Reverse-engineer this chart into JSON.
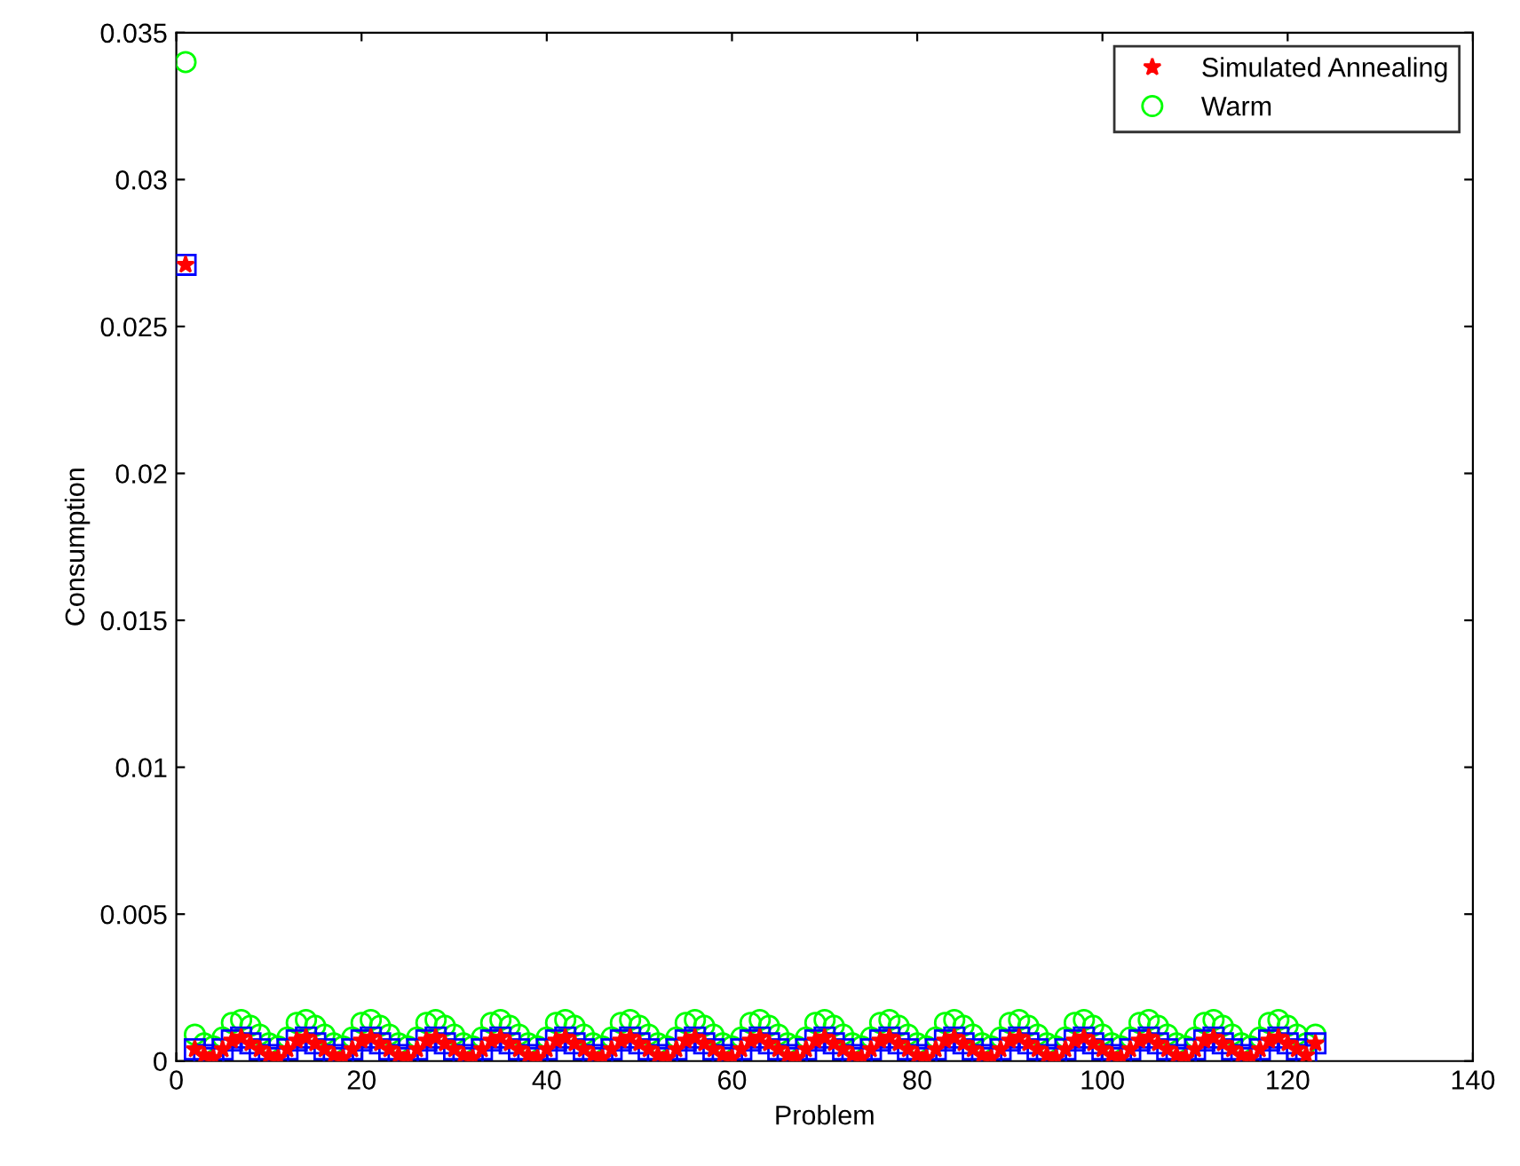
{
  "chart_data": {
    "type": "scatter",
    "xlabel": "Problem",
    "ylabel": "Consumption",
    "x": [
      1,
      2,
      3,
      4,
      5,
      6,
      7,
      8,
      9,
      10,
      11,
      12,
      13,
      14,
      15,
      16,
      17,
      18,
      19,
      20,
      21,
      22,
      23,
      24,
      25,
      26,
      27,
      28,
      29,
      30,
      31,
      32,
      33,
      34,
      35,
      36,
      37,
      38,
      39,
      40,
      41,
      42,
      43,
      44,
      45,
      46,
      47,
      48,
      49,
      50,
      51,
      52,
      53,
      54,
      55,
      56,
      57,
      58,
      59,
      60,
      61,
      62,
      63,
      64,
      65,
      66,
      67,
      68,
      69,
      70,
      71,
      72,
      73,
      74,
      75,
      76,
      77,
      78,
      79,
      80,
      81,
      82,
      83,
      84,
      85,
      86,
      87,
      88,
      89,
      90,
      91,
      92,
      93,
      94,
      95,
      96,
      97,
      98,
      99,
      100,
      101,
      102,
      103,
      104,
      105,
      106,
      107,
      108,
      109,
      110,
      111,
      112,
      113,
      114,
      115,
      116,
      117,
      118,
      119,
      120,
      121,
      122,
      123
    ],
    "series": [
      {
        "name": "Simulated Annealing",
        "color": "#ff0000",
        "marker": "star",
        "values": [
          0.0271,
          0.0004,
          0.0002,
          0.0001,
          0.0004,
          0.0007,
          0.0008,
          0.0006,
          0.0004,
          0.0002,
          0.0001,
          0.0004,
          0.0007,
          0.0008,
          0.0006,
          0.0004,
          0.0002,
          0.0001,
          0.0004,
          0.0007,
          0.0008,
          0.0006,
          0.0004,
          0.0002,
          0.0001,
          0.0004,
          0.0007,
          0.0008,
          0.0006,
          0.0004,
          0.0002,
          0.0001,
          0.0004,
          0.0007,
          0.0008,
          0.0006,
          0.0004,
          0.0002,
          0.0001,
          0.0004,
          0.0007,
          0.0008,
          0.0006,
          0.0004,
          0.0002,
          0.0001,
          0.0004,
          0.0007,
          0.0008,
          0.0006,
          0.0004,
          0.0002,
          0.0001,
          0.0004,
          0.0007,
          0.0008,
          0.0006,
          0.0004,
          0.0002,
          0.0001,
          0.0004,
          0.0007,
          0.0008,
          0.0006,
          0.0004,
          0.0002,
          0.0001,
          0.0004,
          0.0007,
          0.0008,
          0.0006,
          0.0004,
          0.0002,
          0.0001,
          0.0004,
          0.0007,
          0.0008,
          0.0006,
          0.0004,
          0.0002,
          0.0001,
          0.0004,
          0.0007,
          0.0008,
          0.0006,
          0.0004,
          0.0002,
          0.0001,
          0.0004,
          0.0007,
          0.0008,
          0.0006,
          0.0004,
          0.0002,
          0.0001,
          0.0004,
          0.0007,
          0.0008,
          0.0006,
          0.0004,
          0.0002,
          0.0001,
          0.0004,
          0.0007,
          0.0008,
          0.0006,
          0.0004,
          0.0002,
          0.0001,
          0.0004,
          0.0007,
          0.0008,
          0.0006,
          0.0004,
          0.0002,
          0.0001,
          0.0004,
          0.0007,
          0.0008,
          0.0006,
          0.0004,
          0.0002,
          0.0006
        ]
      },
      {
        "color": "#0000ff",
        "marker": "square",
        "values": [
          0.0271,
          0.0004,
          0.0002,
          0.0001,
          0.0004,
          0.0007,
          0.0008,
          0.0006,
          0.0004,
          0.0002,
          0.0001,
          0.0004,
          0.0007,
          0.0008,
          0.0006,
          0.0004,
          0.0002,
          0.0001,
          0.0004,
          0.0007,
          0.0008,
          0.0006,
          0.0004,
          0.0002,
          0.0001,
          0.0004,
          0.0007,
          0.0008,
          0.0006,
          0.0004,
          0.0002,
          0.0001,
          0.0004,
          0.0007,
          0.0008,
          0.0006,
          0.0004,
          0.0002,
          0.0001,
          0.0004,
          0.0007,
          0.0008,
          0.0006,
          0.0004,
          0.0002,
          0.0001,
          0.0004,
          0.0007,
          0.0008,
          0.0006,
          0.0004,
          0.0002,
          0.0001,
          0.0004,
          0.0007,
          0.0008,
          0.0006,
          0.0004,
          0.0002,
          0.0001,
          0.0004,
          0.0007,
          0.0008,
          0.0006,
          0.0004,
          0.0002,
          0.0001,
          0.0004,
          0.0007,
          0.0008,
          0.0006,
          0.0004,
          0.0002,
          0.0001,
          0.0004,
          0.0007,
          0.0008,
          0.0006,
          0.0004,
          0.0002,
          0.0001,
          0.0004,
          0.0007,
          0.0008,
          0.0006,
          0.0004,
          0.0002,
          0.0001,
          0.0004,
          0.0007,
          0.0008,
          0.0006,
          0.0004,
          0.0002,
          0.0001,
          0.0004,
          0.0007,
          0.0008,
          0.0006,
          0.0004,
          0.0002,
          0.0001,
          0.0004,
          0.0007,
          0.0008,
          0.0006,
          0.0004,
          0.0002,
          0.0001,
          0.0004,
          0.0007,
          0.0008,
          0.0006,
          0.0004,
          0.0002,
          0.0001,
          0.0004,
          0.0007,
          0.0008,
          0.0006,
          0.0004,
          0.0002,
          0.0006
        ]
      },
      {
        "name": "Warm",
        "color": "#00ff00",
        "marker": "circle",
        "values": [
          0.034,
          0.0009,
          0.0006,
          0.0005,
          0.0008,
          0.0013,
          0.0014,
          0.0012,
          0.0009,
          0.0006,
          0.0005,
          0.0008,
          0.0013,
          0.0014,
          0.0012,
          0.0009,
          0.0006,
          0.0005,
          0.0008,
          0.0013,
          0.0014,
          0.0012,
          0.0009,
          0.0006,
          0.0005,
          0.0008,
          0.0013,
          0.0014,
          0.0012,
          0.0009,
          0.0006,
          0.0005,
          0.0008,
          0.0013,
          0.0014,
          0.0012,
          0.0009,
          0.0006,
          0.0005,
          0.0008,
          0.0013,
          0.0014,
          0.0012,
          0.0009,
          0.0006,
          0.0005,
          0.0008,
          0.0013,
          0.0014,
          0.0012,
          0.0009,
          0.0006,
          0.0005,
          0.0008,
          0.0013,
          0.0014,
          0.0012,
          0.0009,
          0.0006,
          0.0005,
          0.0008,
          0.0013,
          0.0014,
          0.0012,
          0.0009,
          0.0006,
          0.0005,
          0.0008,
          0.0013,
          0.0014,
          0.0012,
          0.0009,
          0.0006,
          0.0005,
          0.0008,
          0.0013,
          0.0014,
          0.0012,
          0.0009,
          0.0006,
          0.0005,
          0.0008,
          0.0013,
          0.0014,
          0.0012,
          0.0009,
          0.0006,
          0.0005,
          0.0008,
          0.0013,
          0.0014,
          0.0012,
          0.0009,
          0.0006,
          0.0005,
          0.0008,
          0.0013,
          0.0014,
          0.0012,
          0.0009,
          0.0006,
          0.0005,
          0.0008,
          0.0013,
          0.0014,
          0.0012,
          0.0009,
          0.0006,
          0.0005,
          0.0008,
          0.0013,
          0.0014,
          0.0012,
          0.0009,
          0.0006,
          0.0005,
          0.0008,
          0.0013,
          0.0014,
          0.0012,
          0.0009,
          0.0006,
          0.0009
        ]
      }
    ],
    "xlim": [
      0,
      140
    ],
    "xticks": [
      0,
      20,
      40,
      60,
      80,
      100,
      120,
      140
    ],
    "ylim": [
      0,
      0.035
    ],
    "yticks": [
      0,
      0.005,
      0.01,
      0.015,
      0.02,
      0.025,
      0.03,
      0.035
    ],
    "grid": false,
    "legend": "top right"
  }
}
